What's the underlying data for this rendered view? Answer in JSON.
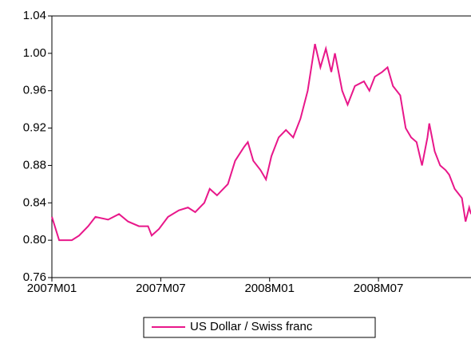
{
  "chart_data": {
    "type": "line",
    "x": [
      0,
      0.4,
      1.1,
      1.5,
      2.0,
      2.4,
      3.1,
      3.7,
      4.2,
      4.8,
      5.3,
      5.5,
      5.9,
      6.4,
      7.0,
      7.5,
      7.9,
      8.4,
      8.7,
      9.1,
      9.7,
      10.1,
      10.6,
      10.8,
      11.1,
      11.5,
      11.8,
      12.1,
      12.5,
      12.9,
      13.3,
      13.7,
      14.1,
      14.5,
      14.8,
      15.1,
      15.4,
      15.6,
      16.0,
      16.3,
      16.7,
      17.2,
      17.5,
      17.8,
      18.2,
      18.5,
      18.8,
      19.2,
      19.5,
      19.8,
      20.1,
      20.4,
      20.7,
      20.8,
      21.1,
      21.4,
      21.7,
      21.9,
      22.2,
      22.6,
      22.8,
      23.0,
      23.1
    ],
    "series": [
      {
        "name": "US Dollar / Swiss franc",
        "color": "#e8178a",
        "values": [
          0.825,
          0.8,
          0.8,
          0.805,
          0.815,
          0.825,
          0.822,
          0.828,
          0.82,
          0.815,
          0.815,
          0.805,
          0.812,
          0.825,
          0.832,
          0.835,
          0.83,
          0.84,
          0.855,
          0.848,
          0.86,
          0.885,
          0.9,
          0.905,
          0.885,
          0.875,
          0.865,
          0.89,
          0.91,
          0.918,
          0.91,
          0.93,
          0.96,
          1.01,
          0.985,
          1.005,
          0.98,
          1.0,
          0.96,
          0.945,
          0.965,
          0.97,
          0.96,
          0.975,
          0.98,
          0.985,
          0.965,
          0.955,
          0.92,
          0.91,
          0.905,
          0.88,
          0.91,
          0.925,
          0.895,
          0.88,
          0.875,
          0.87,
          0.855,
          0.845,
          0.82,
          0.835,
          0.828
        ]
      }
    ],
    "xlim": [
      0,
      23.1
    ],
    "xticks": [
      {
        "value": 0,
        "label": "2007M01"
      },
      {
        "value": 6,
        "label": "2007M07"
      },
      {
        "value": 12,
        "label": "2008M01"
      },
      {
        "value": 18,
        "label": "2008M07"
      }
    ],
    "ylim": [
      0.76,
      1.04
    ],
    "yticks": [
      0.76,
      {
        "value": 0.8,
        "label": "0.80"
      },
      0.84,
      0.88,
      0.92,
      0.96,
      {
        "value": 1,
        "label": "1.00"
      },
      1.04
    ]
  }
}
